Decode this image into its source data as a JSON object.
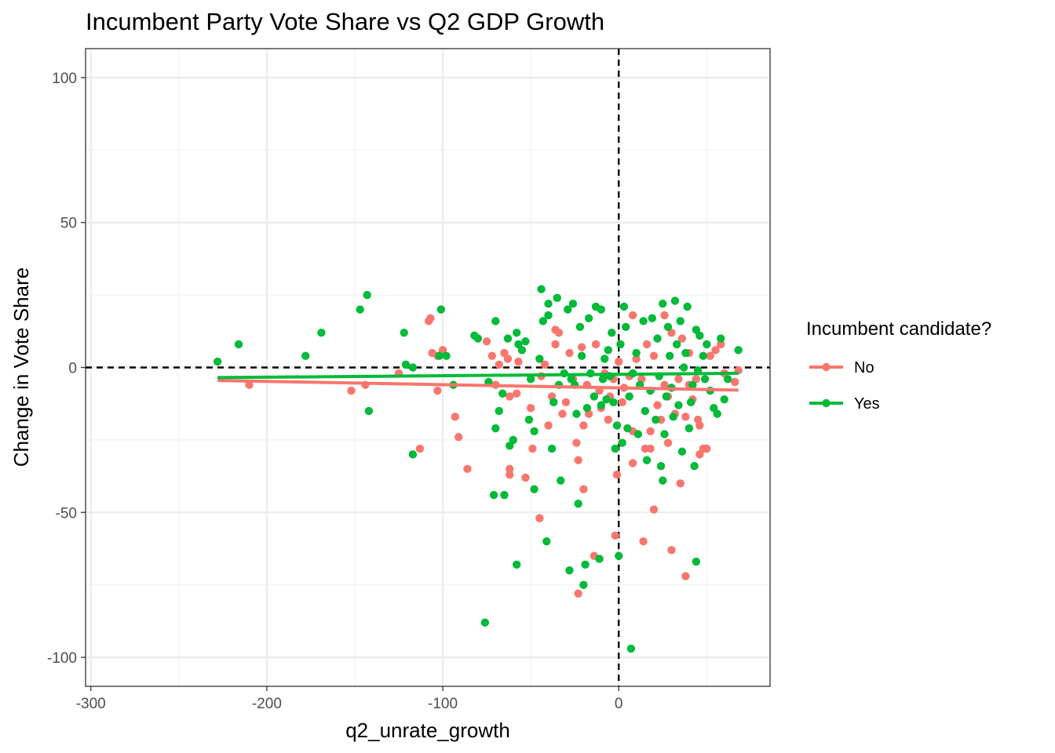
{
  "chart_data": {
    "type": "scatter",
    "title": "Incumbent Party Vote Share vs Q2 GDP Growth",
    "xlabel": "q2_unrate_growth",
    "ylabel": "Change in Vote Share",
    "xlim": [
      -303,
      86
    ],
    "ylim": [
      -110,
      110
    ],
    "x_ticks": [
      -300,
      -200,
      -100,
      0
    ],
    "x_tick_labels": [
      "-300",
      "-200",
      "-100",
      "0"
    ],
    "y_ticks": [
      -100,
      -50,
      0,
      50,
      100
    ],
    "y_tick_labels": [
      "-100",
      "-50",
      "0",
      "50",
      "100"
    ],
    "grid": true,
    "reference_lines": [
      {
        "axis": "x",
        "value": 0
      },
      {
        "axis": "y",
        "value": 0
      }
    ],
    "legend": {
      "title": "Incumbent candidate?",
      "position": "right",
      "entries": [
        {
          "label": "No",
          "color": "#F8766D"
        },
        {
          "label": "Yes",
          "color": "#00BA38"
        }
      ]
    },
    "series": [
      {
        "name": "No",
        "color": "#F8766D",
        "trend": [
          [
            -228,
            -4.5
          ],
          [
            68,
            -7.8
          ]
        ],
        "points": [
          [
            -210,
            -6
          ],
          [
            -152,
            -8
          ],
          [
            -144,
            -6
          ],
          [
            -125,
            -2
          ],
          [
            -113,
            -28
          ],
          [
            -108,
            16
          ],
          [
            -107,
            17
          ],
          [
            -106,
            5
          ],
          [
            -103,
            -8
          ],
          [
            -100,
            6
          ],
          [
            -103,
            4
          ],
          [
            -93,
            -17
          ],
          [
            -91,
            -24
          ],
          [
            -86,
            -35
          ],
          [
            -75,
            9
          ],
          [
            -72,
            4
          ],
          [
            -70,
            -6
          ],
          [
            -68,
            1
          ],
          [
            -65,
            5
          ],
          [
            -63,
            3
          ],
          [
            -62,
            -10
          ],
          [
            -62,
            -35
          ],
          [
            -62,
            -37
          ],
          [
            -58,
            -9
          ],
          [
            -57,
            2
          ],
          [
            -53,
            -38
          ],
          [
            -49,
            -28
          ],
          [
            -50,
            -14
          ],
          [
            -45,
            -52
          ],
          [
            -44,
            -3
          ],
          [
            -42,
            1
          ],
          [
            -40,
            -20
          ],
          [
            -38,
            -10
          ],
          [
            -36,
            13
          ],
          [
            -36,
            8
          ],
          [
            -34,
            12
          ],
          [
            -32,
            -16
          ],
          [
            -30,
            -12
          ],
          [
            -28,
            5
          ],
          [
            -26,
            -4
          ],
          [
            -24,
            -26
          ],
          [
            -23,
            -32
          ],
          [
            -23,
            -78
          ],
          [
            -21,
            7
          ],
          [
            -20,
            -42
          ],
          [
            -20,
            -20
          ],
          [
            -18,
            -6
          ],
          [
            -17,
            -16
          ],
          [
            -14,
            -65
          ],
          [
            -13,
            8
          ],
          [
            -11,
            -8
          ],
          [
            -10,
            -14
          ],
          [
            -8,
            -2
          ],
          [
            -6,
            -18
          ],
          [
            -5,
            -10
          ],
          [
            -3,
            -4
          ],
          [
            -2,
            -58
          ],
          [
            -1,
            -37
          ],
          [
            0,
            2
          ],
          [
            2,
            -12
          ],
          [
            3,
            -7
          ],
          [
            6,
            -3
          ],
          [
            8,
            -22
          ],
          [
            8,
            18
          ],
          [
            8,
            -33
          ],
          [
            10,
            3
          ],
          [
            13,
            -4
          ],
          [
            14,
            -60
          ],
          [
            15,
            -28
          ],
          [
            16,
            8
          ],
          [
            18,
            -22
          ],
          [
            18,
            -28
          ],
          [
            20,
            -49
          ],
          [
            20,
            4
          ],
          [
            22,
            -13
          ],
          [
            24,
            -18
          ],
          [
            26,
            18
          ],
          [
            26,
            -6
          ],
          [
            28,
            -26
          ],
          [
            28,
            -10
          ],
          [
            30,
            -63
          ],
          [
            30,
            12
          ],
          [
            32,
            -16
          ],
          [
            34,
            -4
          ],
          [
            35,
            -40
          ],
          [
            36,
            10
          ],
          [
            38,
            -72
          ],
          [
            38,
            -17
          ],
          [
            40,
            -6
          ],
          [
            40,
            5
          ],
          [
            42,
            -11
          ],
          [
            44,
            -4
          ],
          [
            45,
            -18
          ],
          [
            46,
            -20
          ],
          [
            46,
            -30
          ],
          [
            48,
            -28
          ],
          [
            50,
            -28
          ],
          [
            52,
            4
          ],
          [
            55,
            6
          ],
          [
            58,
            8
          ],
          [
            60,
            -2
          ],
          [
            66,
            -5
          ],
          [
            68,
            -1
          ]
        ]
      },
      {
        "name": "Yes",
        "color": "#00BA38",
        "trend": [
          [
            -228,
            -3.5
          ],
          [
            68,
            -2.0
          ]
        ],
        "points": [
          [
            -228,
            2
          ],
          [
            -216,
            8
          ],
          [
            -178,
            4
          ],
          [
            -169,
            12
          ],
          [
            -147,
            20
          ],
          [
            -143,
            25
          ],
          [
            -142,
            -15
          ],
          [
            -122,
            12
          ],
          [
            -121,
            1
          ],
          [
            -117,
            -30
          ],
          [
            -117,
            0
          ],
          [
            -102,
            4
          ],
          [
            -101,
            20
          ],
          [
            -98,
            4
          ],
          [
            -94,
            -6
          ],
          [
            -82,
            11
          ],
          [
            -80,
            10
          ],
          [
            -76,
            -88
          ],
          [
            -74,
            -5
          ],
          [
            -71,
            -44
          ],
          [
            -70,
            -21
          ],
          [
            -70,
            16
          ],
          [
            -68,
            -15
          ],
          [
            -66,
            -9
          ],
          [
            -65,
            -44
          ],
          [
            -63,
            10
          ],
          [
            -62,
            -27
          ],
          [
            -60,
            -25
          ],
          [
            -58,
            -68
          ],
          [
            -58,
            12
          ],
          [
            -57,
            8
          ],
          [
            -55,
            6
          ],
          [
            -53,
            9
          ],
          [
            -51,
            -18
          ],
          [
            -50,
            -4
          ],
          [
            -48,
            -42
          ],
          [
            -48,
            -22
          ],
          [
            -45,
            3
          ],
          [
            -44,
            27
          ],
          [
            -43,
            16
          ],
          [
            -41,
            -60
          ],
          [
            -40,
            18
          ],
          [
            -40,
            22
          ],
          [
            -38,
            -28
          ],
          [
            -37,
            -12
          ],
          [
            -35,
            24
          ],
          [
            -34,
            -6
          ],
          [
            -33,
            -39
          ],
          [
            -31,
            -2
          ],
          [
            -29,
            20
          ],
          [
            -28,
            -70
          ],
          [
            -27,
            -4
          ],
          [
            -26,
            22
          ],
          [
            -25,
            -6
          ],
          [
            -24,
            -16
          ],
          [
            -23,
            -47
          ],
          [
            -22,
            14
          ],
          [
            -21,
            4
          ],
          [
            -20,
            -75
          ],
          [
            -19,
            -68
          ],
          [
            -18,
            -14
          ],
          [
            -17,
            17
          ],
          [
            -16,
            -2
          ],
          [
            -14,
            -10
          ],
          [
            -13,
            21
          ],
          [
            -11,
            -66
          ],
          [
            -10,
            20
          ],
          [
            -10,
            -13
          ],
          [
            -9,
            -4
          ],
          [
            -8,
            3
          ],
          [
            -7,
            -11
          ],
          [
            -6,
            6
          ],
          [
            -5,
            -3
          ],
          [
            -4,
            12
          ],
          [
            -3,
            -12
          ],
          [
            -2,
            -28
          ],
          [
            -1,
            -20
          ],
          [
            0,
            -65
          ],
          [
            1,
            8
          ],
          [
            2,
            -26
          ],
          [
            3,
            21
          ],
          [
            4,
            14
          ],
          [
            5,
            -21
          ],
          [
            6,
            -10
          ],
          [
            7,
            -97
          ],
          [
            8,
            -2
          ],
          [
            10,
            5
          ],
          [
            11,
            -23
          ],
          [
            12,
            -6
          ],
          [
            14,
            16
          ],
          [
            15,
            -15
          ],
          [
            16,
            -32
          ],
          [
            18,
            -8
          ],
          [
            19,
            17
          ],
          [
            21,
            -18
          ],
          [
            22,
            10
          ],
          [
            23,
            -3
          ],
          [
            24,
            -34
          ],
          [
            25,
            -39
          ],
          [
            25,
            22
          ],
          [
            26,
            -23
          ],
          [
            27,
            -10
          ],
          [
            28,
            14
          ],
          [
            29,
            4
          ],
          [
            30,
            -7
          ],
          [
            31,
            -17
          ],
          [
            32,
            23
          ],
          [
            33,
            8
          ],
          [
            34,
            -13
          ],
          [
            35,
            16
          ],
          [
            36,
            -29
          ],
          [
            37,
            0
          ],
          [
            38,
            5
          ],
          [
            39,
            21
          ],
          [
            40,
            -21
          ],
          [
            41,
            -12
          ],
          [
            42,
            -6
          ],
          [
            43,
            -34
          ],
          [
            44,
            -67
          ],
          [
            44,
            13
          ],
          [
            45,
            -1
          ],
          [
            46,
            11
          ],
          [
            48,
            4
          ],
          [
            49,
            -4
          ],
          [
            50,
            8
          ],
          [
            52,
            -8
          ],
          [
            54,
            -14
          ],
          [
            56,
            -16
          ],
          [
            58,
            10
          ],
          [
            60,
            -11
          ],
          [
            62,
            -4
          ],
          [
            68,
            6
          ]
        ]
      }
    ]
  }
}
